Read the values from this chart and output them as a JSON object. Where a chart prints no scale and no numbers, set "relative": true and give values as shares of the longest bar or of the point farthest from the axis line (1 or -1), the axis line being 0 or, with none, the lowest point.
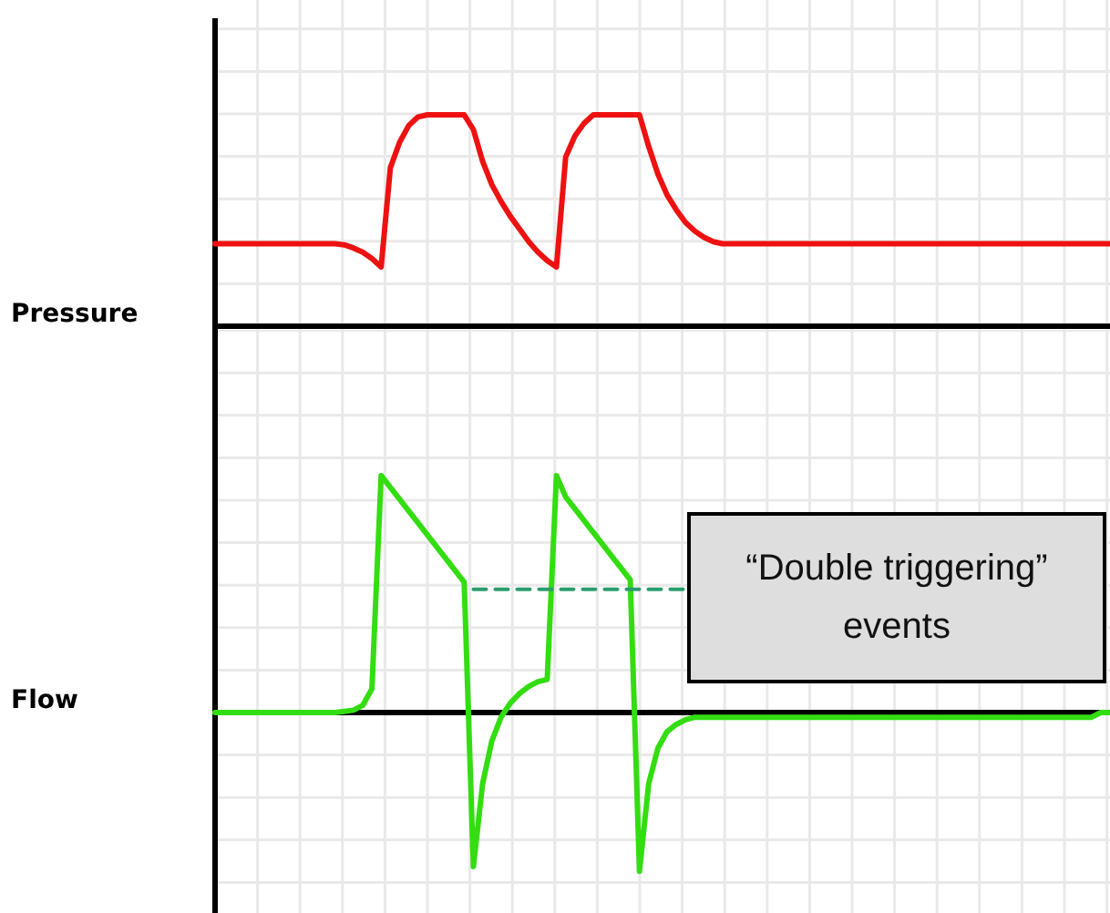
{
  "chart_data": [
    {
      "type": "line",
      "ylabel": "Pressure",
      "relative": true,
      "grid": true,
      "marker": "none",
      "categories": [
        null,
        null,
        null,
        null,
        null,
        null,
        null,
        null,
        null,
        null,
        null,
        null,
        null,
        null,
        null,
        null,
        null,
        null,
        null,
        null,
        null,
        null,
        null,
        null,
        null,
        null,
        null,
        null,
        null,
        null,
        null,
        null,
        null,
        null,
        null,
        null,
        null,
        null,
        null,
        null,
        null,
        null,
        null,
        null,
        null,
        null,
        null,
        null,
        null,
        null,
        null,
        null,
        null,
        null,
        null,
        null,
        null,
        null,
        null,
        null,
        null,
        null,
        null,
        null,
        null,
        null,
        null,
        null,
        null,
        null,
        null,
        null,
        null,
        null,
        null,
        null,
        null,
        null,
        null,
        null,
        null,
        null,
        null,
        null,
        null,
        null,
        null,
        null,
        null,
        null,
        null,
        null,
        null,
        null,
        null,
        null,
        null,
        null
      ],
      "series": [
        {
          "color": "#ee1111",
          "values": [
            0.39,
            0.39,
            0.39,
            0.39,
            0.39,
            0.39,
            0.39,
            0.39,
            0.39,
            0.39,
            0.39,
            0.39,
            0.39,
            0.39,
            0.385,
            0.37,
            0.35,
            0.32,
            0.28,
            0.75,
            0.87,
            0.95,
            0.99,
            1,
            1,
            1,
            1,
            1,
            0.93,
            0.78,
            0.67,
            0.59,
            0.52,
            0.46,
            0.4,
            0.35,
            0.31,
            0.28,
            0.8,
            0.9,
            0.96,
            1,
            1,
            1,
            1,
            1,
            1,
            0.85,
            0.72,
            0.62,
            0.55,
            0.49,
            0.45,
            0.42,
            0.4,
            0.39,
            0.39,
            0.39,
            0.39,
            0.39,
            0.39,
            0.39,
            0.39,
            0.39,
            0.39,
            0.39,
            0.39,
            0.39,
            0.39,
            0.39,
            0.39,
            0.39,
            0.39,
            0.39,
            0.39,
            0.39,
            0.39,
            0.39,
            0.39,
            0.39,
            0.39,
            0.39,
            0.39,
            0.39,
            0.39,
            0.39,
            0.39,
            0.39,
            0.39,
            0.39,
            0.39,
            0.39,
            0.39,
            0.39,
            0.39,
            0.39,
            0.39,
            0.39
          ]
        }
      ]
    },
    {
      "type": "line",
      "ylabel": "Flow",
      "relative": true,
      "grid": true,
      "marker": "none",
      "categories": [
        null,
        null,
        null,
        null,
        null,
        null,
        null,
        null,
        null,
        null,
        null,
        null,
        null,
        null,
        null,
        null,
        null,
        null,
        null,
        null,
        null,
        null,
        null,
        null,
        null,
        null,
        null,
        null,
        null,
        null,
        null,
        null,
        null,
        null,
        null,
        null,
        null,
        null,
        null,
        null,
        null,
        null,
        null,
        null,
        null,
        null,
        null,
        null,
        null,
        null,
        null,
        null,
        null,
        null,
        null,
        null,
        null,
        null,
        null,
        null,
        null,
        null,
        null,
        null,
        null,
        null,
        null,
        null,
        null,
        null,
        null,
        null,
        null,
        null,
        null,
        null,
        null,
        null,
        null,
        null,
        null,
        null,
        null,
        null,
        null,
        null,
        null,
        null,
        null,
        null,
        null,
        null,
        null,
        null,
        null,
        null,
        null,
        null
      ],
      "annotations": [
        "“Double triggering” events"
      ],
      "series": [
        {
          "color": "#33dd11",
          "values": [
            0,
            0,
            0,
            0,
            0,
            0,
            0,
            0,
            0,
            0,
            0,
            0,
            0,
            0,
            0.005,
            0.01,
            0.03,
            0.1,
            1,
            0.95,
            0.9,
            0.85,
            0.8,
            0.75,
            0.7,
            0.65,
            0.6,
            0.55,
            -0.65,
            -0.3,
            -0.12,
            -0.02,
            0.04,
            0.08,
            0.11,
            0.13,
            0.14,
            1,
            0.91,
            0.86,
            0.81,
            0.76,
            0.71,
            0.66,
            0.61,
            0.56,
            -0.67,
            -0.3,
            -0.15,
            -0.08,
            -0.05,
            -0.03,
            -0.02,
            -0.02,
            -0.02,
            -0.02,
            -0.02,
            -0.02,
            -0.02,
            -0.02,
            -0.02,
            -0.02,
            -0.02,
            -0.02,
            -0.02,
            -0.02,
            -0.02,
            -0.02,
            -0.02,
            -0.02,
            -0.02,
            -0.02,
            -0.02,
            -0.02,
            -0.02,
            -0.02,
            -0.02,
            -0.02,
            -0.02,
            -0.02,
            -0.02,
            -0.02,
            -0.02,
            -0.02,
            -0.02,
            -0.02,
            -0.02,
            -0.02,
            -0.02,
            -0.02,
            -0.02,
            -0.02,
            -0.02,
            -0.02,
            -0.02,
            -0.02,
            0,
            0
          ]
        },
        {
          "color": "#2a9d6e",
          "line_style": "dashed",
          "values": [
            null,
            null,
            null,
            null,
            null,
            null,
            null,
            null,
            null,
            null,
            null,
            null,
            null,
            null,
            null,
            null,
            null,
            null,
            null,
            null,
            null,
            null,
            null,
            null,
            null,
            null,
            null,
            null,
            0.52,
            0.52,
            0.52,
            0.52,
            0.52,
            0.52,
            0.52,
            0.52,
            0.52,
            0.52,
            0.52,
            0.52,
            0.52,
            0.52,
            0.52,
            0.52,
            0.52,
            0.52,
            0.52,
            0.52,
            0.52,
            0.52,
            0.52,
            0.52,
            null,
            null,
            null,
            null,
            null,
            null,
            null,
            null,
            null,
            null,
            null,
            null,
            null,
            null,
            null,
            null,
            null,
            null,
            null,
            null,
            null,
            null,
            null,
            null,
            null,
            null,
            null,
            null,
            null,
            null,
            null,
            null,
            null,
            null,
            null,
            null,
            null,
            null,
            null,
            null,
            null,
            null,
            null,
            null,
            null,
            null
          ]
        }
      ]
    }
  ]
}
